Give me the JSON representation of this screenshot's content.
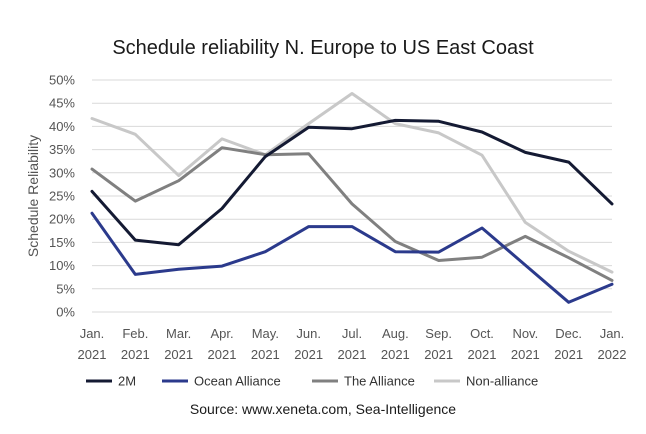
{
  "chart_data": {
    "type": "line",
    "title": "Schedule reliability N. Europe to US East Coast",
    "ylabel": "Schedule Reliability",
    "xlabel": "",
    "source": "Source: www.xeneta.com, Sea-Intelligence",
    "categories": [
      [
        "Jan.",
        "2021"
      ],
      [
        "Feb.",
        "2021"
      ],
      [
        "Mar.",
        "2021"
      ],
      [
        "Apr.",
        "2021"
      ],
      [
        "May.",
        "2021"
      ],
      [
        "Jun.",
        "2021"
      ],
      [
        "Jul.",
        "2021"
      ],
      [
        "Aug.",
        "2021"
      ],
      [
        "Sep.",
        "2021"
      ],
      [
        "Oct.",
        "2021"
      ],
      [
        "Nov.",
        "2021"
      ],
      [
        "Dec.",
        "2021"
      ],
      [
        "Jan.",
        "2022"
      ]
    ],
    "ylim": [
      0,
      50
    ],
    "yticks": [
      "0%",
      "5%",
      "10%",
      "15%",
      "20%",
      "25%",
      "30%",
      "35%",
      "40%",
      "45%",
      "50%"
    ],
    "grid": true,
    "legend_position": "bottom",
    "series": [
      {
        "name": "2M",
        "color": "#141a33",
        "values": [
          26,
          15.5,
          14.5,
          22.3,
          33.5,
          39.8,
          39.5,
          41.3,
          41.1,
          38.8,
          34.4,
          32.3,
          23.3
        ]
      },
      {
        "name": "Ocean Alliance",
        "color": "#2b3a8c",
        "values": [
          21.3,
          8.1,
          9.2,
          9.9,
          13,
          18.4,
          18.4,
          13,
          12.9,
          18.1,
          10.1,
          2.1,
          6
        ]
      },
      {
        "name": "The Alliance",
        "color": "#808080",
        "values": [
          30.8,
          23.9,
          28.3,
          35.4,
          33.9,
          34.1,
          23.3,
          15.2,
          11.1,
          11.8,
          16.3,
          11.7,
          6.8
        ]
      },
      {
        "name": "Non-alliance",
        "color": "#c8c8c8",
        "values": [
          41.7,
          38.3,
          29.4,
          37.3,
          33.9,
          40.6,
          47.1,
          40.6,
          38.6,
          33.8,
          19.3,
          13.1,
          8.6
        ]
      }
    ]
  }
}
